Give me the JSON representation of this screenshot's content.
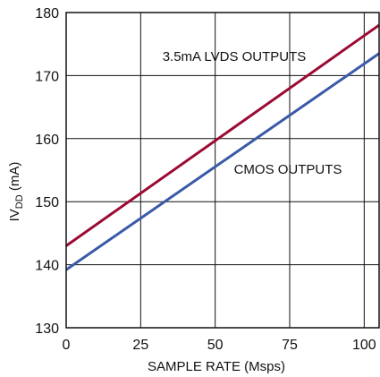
{
  "chart_data": {
    "type": "line",
    "xlabel": "SAMPLE RATE (Msps)",
    "ylabel": {
      "prefix": "IV",
      "sub": "DD",
      "suffix": " (mA)"
    },
    "xlim": [
      0,
      105
    ],
    "ylim": [
      130,
      180
    ],
    "xticks": [
      0,
      25,
      50,
      75,
      100
    ],
    "yticks": [
      130,
      140,
      150,
      160,
      170,
      180
    ],
    "grid": true,
    "series": [
      {
        "name": "3.5mA LVDS OUTPUTS",
        "color": "#9b0a33",
        "x": [
          0,
          105
        ],
        "y": [
          143,
          178
        ]
      },
      {
        "name": "CMOS OUTPUTS",
        "color": "#3a5aa8",
        "x": [
          0,
          105
        ],
        "y": [
          139.2,
          173.5
        ]
      }
    ]
  }
}
